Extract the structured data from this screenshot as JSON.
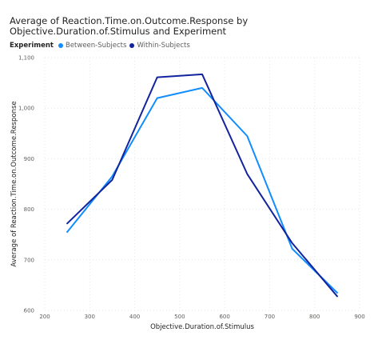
{
  "chart_data": {
    "type": "line",
    "title": "Average of Reaction.Time.on.Outcome.Response by Objective.Duration.of.Stimulus and Experiment",
    "xlabel": "Objective.Duration.of.Stimulus",
    "ylabel": "Average of Reaction.Time.on.Outcome.Response",
    "xlim": [
      200,
      900
    ],
    "ylim": [
      600,
      1100
    ],
    "xticks": [
      "200",
      "300",
      "400",
      "500",
      "600",
      "700",
      "800",
      "900"
    ],
    "yticks": [
      "600",
      "700",
      "800",
      "900",
      "1,000",
      "1,100"
    ],
    "grid": true,
    "legend": {
      "title": "Experiment",
      "placement": "top-left"
    },
    "x": [
      250,
      350,
      450,
      550,
      650,
      750,
      850
    ],
    "series": [
      {
        "name": "Between-Subjects",
        "color": "#118DFF",
        "values": [
          755,
          865,
          1020,
          1040,
          945,
          722,
          635
        ]
      },
      {
        "name": "Within-Subjects",
        "color": "#12239E",
        "values": [
          772,
          858,
          1061,
          1067,
          870,
          733,
          628
        ]
      }
    ]
  }
}
